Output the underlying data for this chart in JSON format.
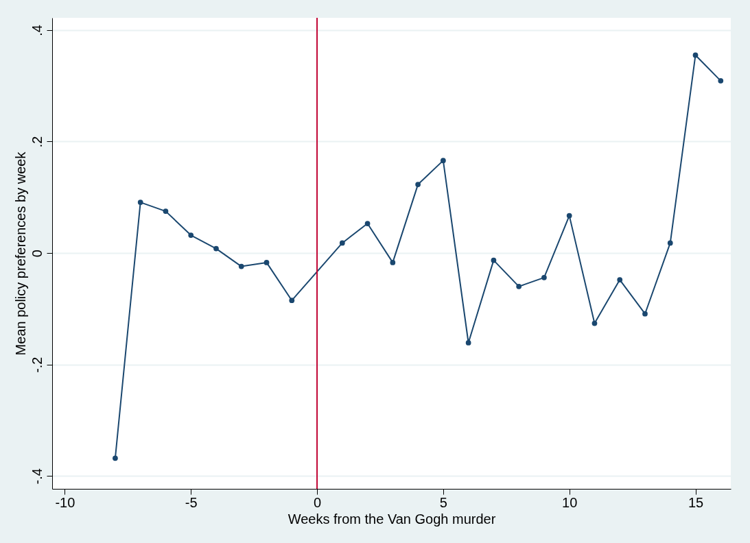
{
  "chart_data": {
    "type": "line",
    "xlabel": "Weeks from the Van Gogh murder",
    "ylabel": "Mean policy preferences by week",
    "x": [
      -8,
      -7,
      -6,
      -5,
      -4,
      -3,
      -2,
      -1,
      1,
      2,
      3,
      4,
      5,
      6,
      7,
      8,
      9,
      10,
      11,
      12,
      13,
      14,
      15,
      16
    ],
    "series": [
      {
        "color": "#1a476f",
        "values": [
          -0.368,
          0.091,
          0.075,
          0.032,
          0.008,
          -0.024,
          -0.017,
          -0.085,
          0.018,
          0.053,
          -0.017,
          0.123,
          0.166,
          -0.161,
          -0.013,
          -0.06,
          -0.044,
          0.067,
          -0.126,
          -0.048,
          -0.109,
          0.018,
          0.355,
          0.309
        ]
      }
    ],
    "xlim": [
      -10.5,
      16.4
    ],
    "ylim": [
      -0.423,
      0.422
    ],
    "xticks": [
      -10,
      -5,
      0,
      5,
      10,
      15
    ],
    "yticks": [
      {
        "value": -0.4,
        "label": "-.4"
      },
      {
        "value": -0.2,
        "label": "-.2"
      },
      0,
      {
        "value": 0.2,
        "label": ".2"
      },
      {
        "value": 0.4,
        "label": ".4"
      }
    ],
    "ref_lines": [
      {
        "axis": "x",
        "value": 0,
        "color": "#c10534"
      }
    ],
    "grid": "y",
    "marker": "circle",
    "line_style": "solid"
  }
}
